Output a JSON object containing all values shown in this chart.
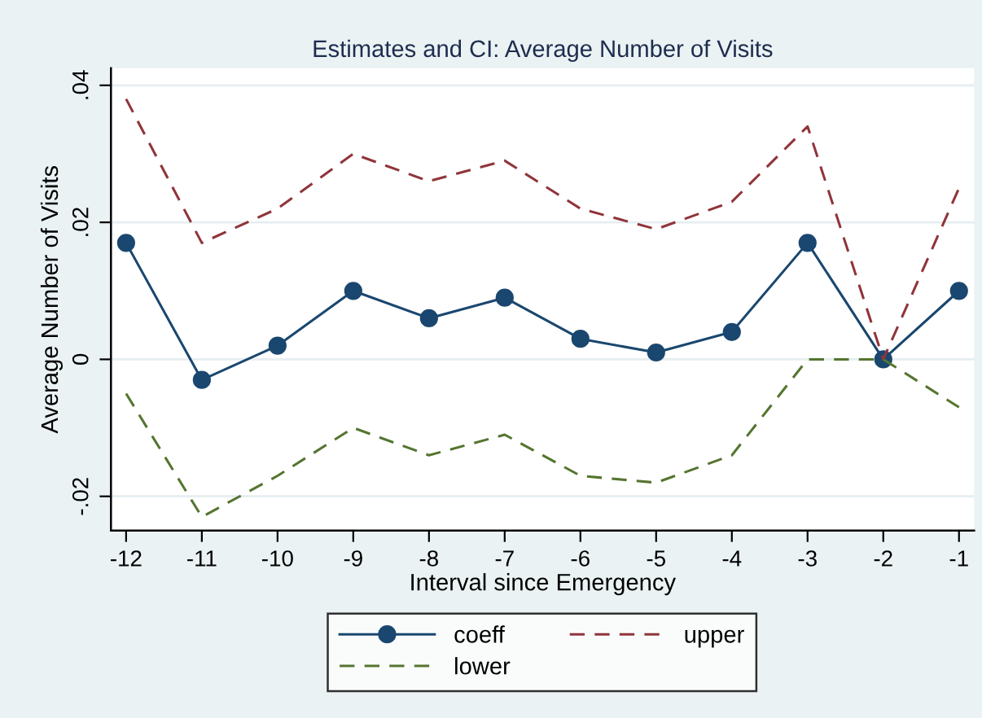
{
  "chart_data": {
    "type": "line",
    "title": "Estimates and CI: Average Number of Visits",
    "xlabel": "Interval since Emergency",
    "ylabel": "Average Number of Visits",
    "x": [
      -12,
      -11,
      -10,
      -9,
      -8,
      -7,
      -6,
      -5,
      -4,
      -3,
      -2,
      -1
    ],
    "series": [
      {
        "name": "coeff",
        "color": "#1a476f",
        "marker": "circle",
        "line_style": "solid",
        "values": [
          0.017,
          -0.003,
          0.002,
          0.01,
          0.006,
          0.009,
          0.003,
          0.001,
          0.004,
          0.017,
          0.0,
          0.01
        ]
      },
      {
        "name": "upper",
        "color": "#90353b",
        "marker": "none",
        "line_style": "dashed",
        "values": [
          0.038,
          0.017,
          0.022,
          0.03,
          0.026,
          0.029,
          0.022,
          0.019,
          0.023,
          0.034,
          0.0,
          0.025
        ]
      },
      {
        "name": "lower",
        "color": "#55752f",
        "marker": "none",
        "line_style": "dashed",
        "values": [
          -0.005,
          -0.023,
          -0.017,
          -0.01,
          -0.014,
          -0.011,
          -0.017,
          -0.018,
          -0.014,
          0.0,
          0.0,
          -0.007
        ]
      }
    ],
    "xlim": [
      -12.2,
      -0.8
    ],
    "xticks": [
      -12,
      -11,
      -10,
      -9,
      -8,
      -7,
      -6,
      -5,
      -4,
      -3,
      -2,
      -1
    ],
    "ylim": [
      -0.025,
      0.0425
    ],
    "yticks": [
      {
        "value": -0.02,
        "label": "-.02"
      },
      {
        "value": 0,
        "label": "0"
      },
      {
        "value": 0.02,
        "label": ".02"
      },
      {
        "value": 0.04,
        "label": ".04"
      }
    ],
    "grid": "y",
    "legend": "bottom"
  }
}
